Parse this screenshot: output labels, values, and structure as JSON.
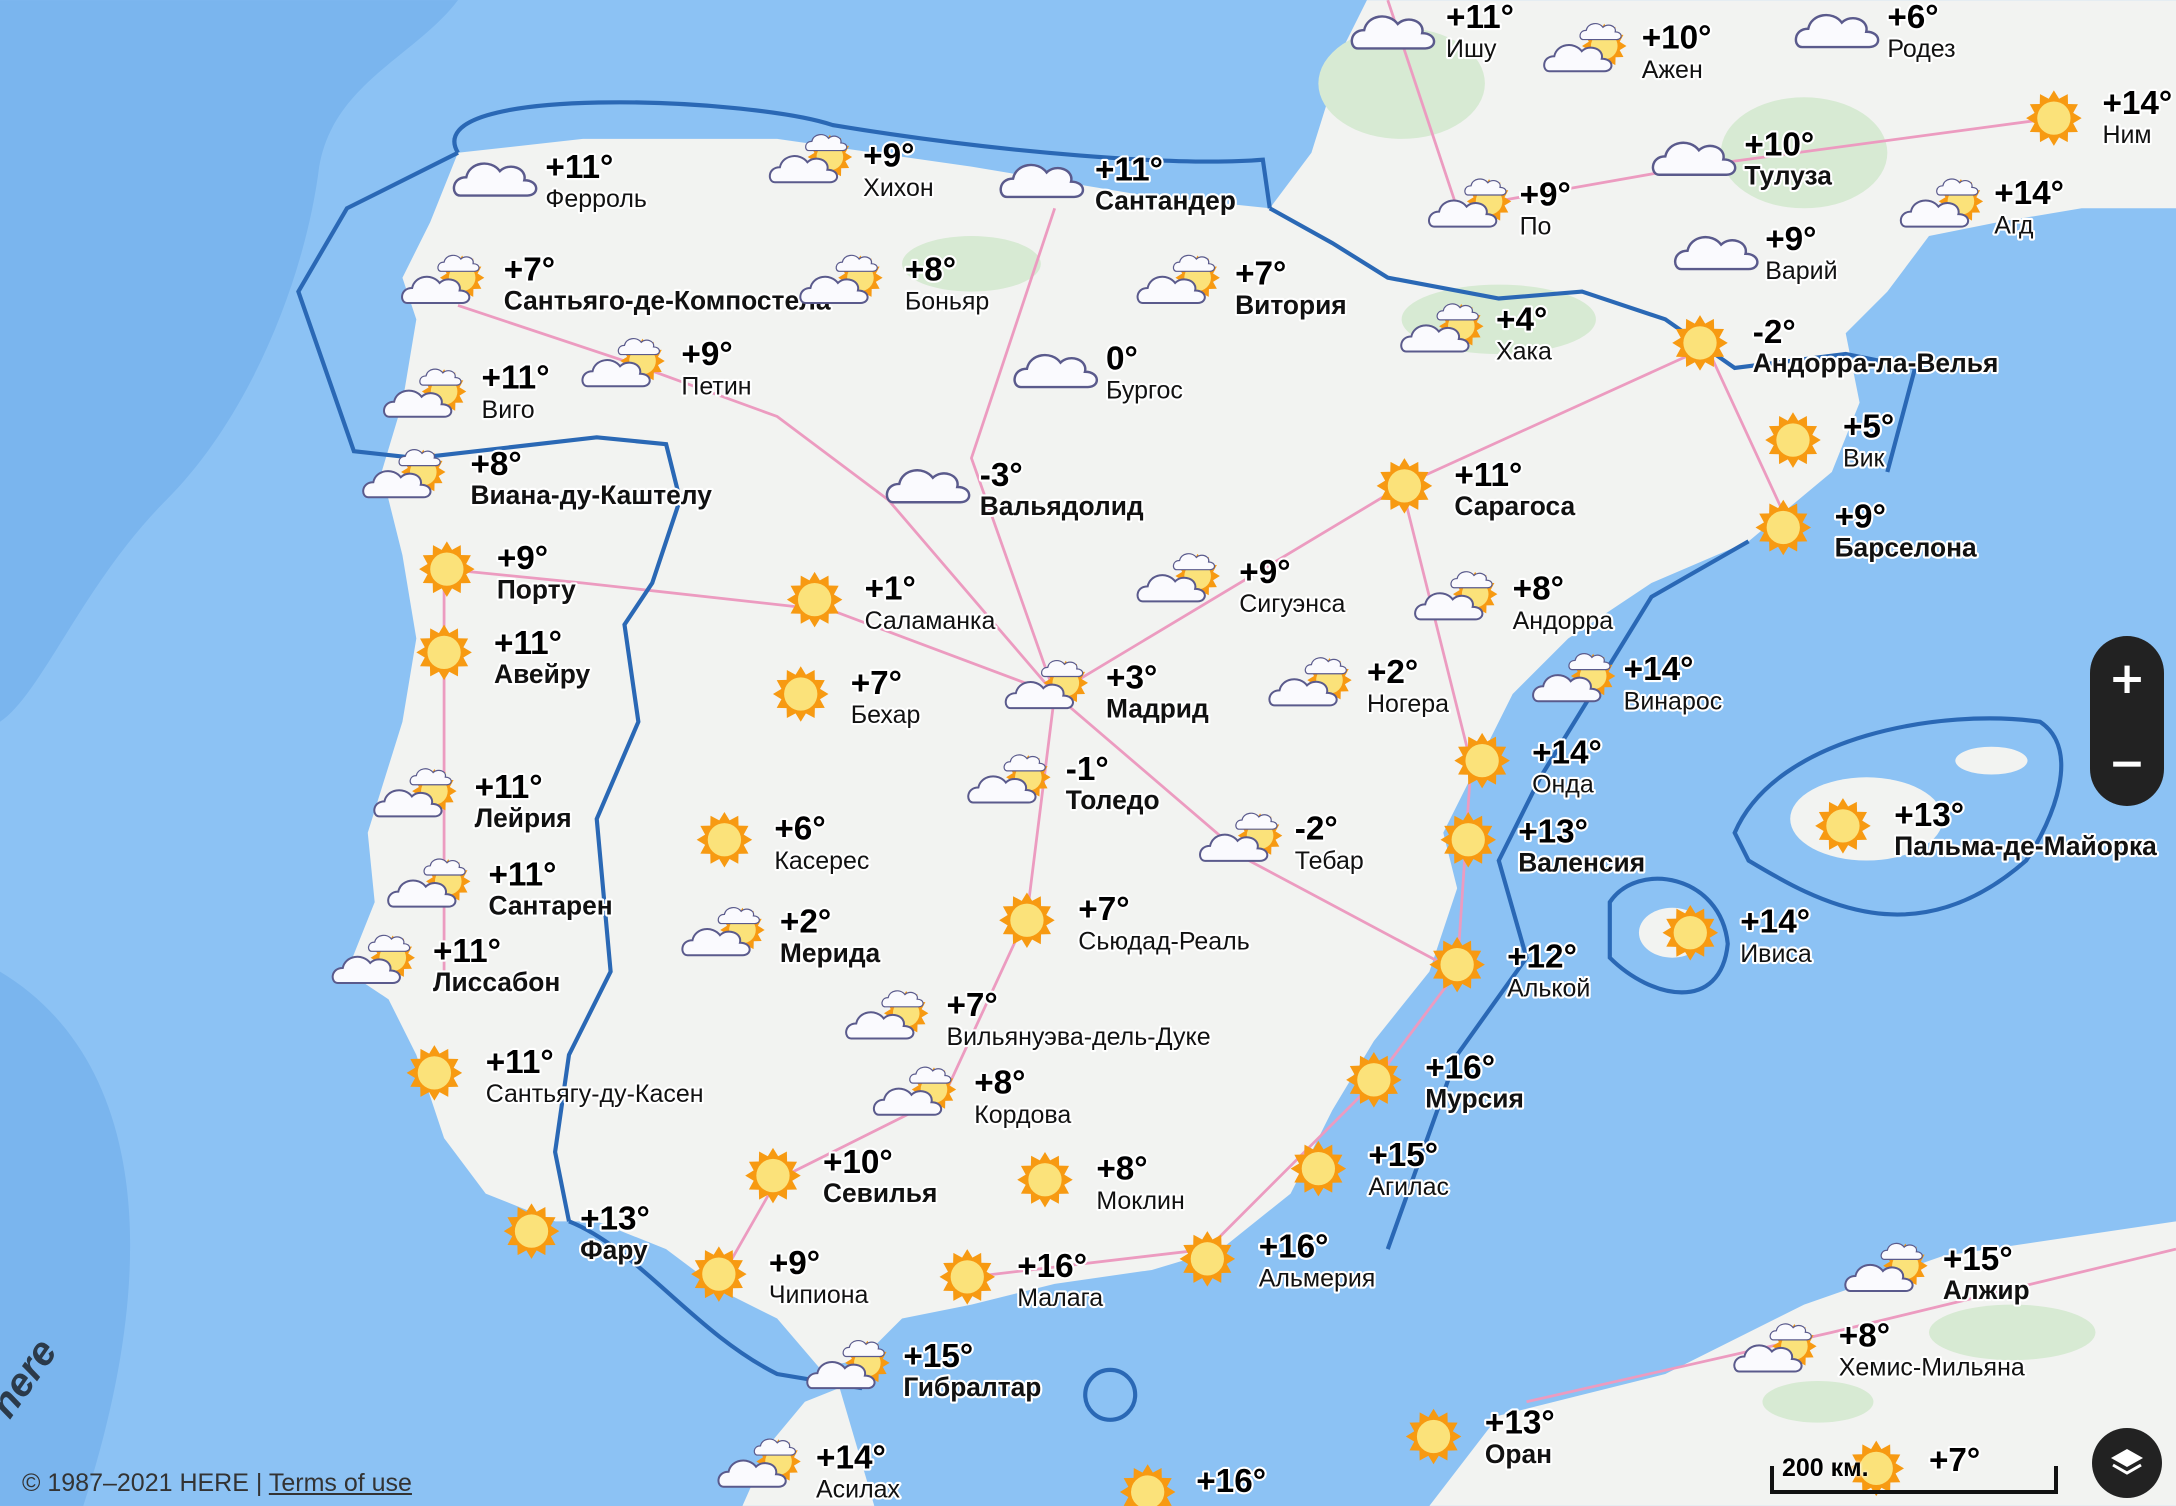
{
  "map": {
    "colors": {
      "sea": "#8cc2f4",
      "sea_deep": "#7ab5ee",
      "land": "#f2f3f1",
      "forest": "#d7ead3",
      "border": "#2a68b5",
      "road": "#ec9bc0"
    },
    "markers": [
      {
        "city": "Ферроль",
        "temp": "+11°",
        "icon": "cloud",
        "bold": false
      },
      {
        "city": "Хихон",
        "temp": "+9°",
        "icon": "sun-cloud",
        "bold": false
      },
      {
        "city": "Сантандер",
        "temp": "+11°",
        "icon": "cloud",
        "bold": true
      },
      {
        "city": "Ишу",
        "temp": "+11°",
        "icon": "cloud",
        "bold": false
      },
      {
        "city": "Ажен",
        "temp": "+10°",
        "icon": "sun-cloud",
        "bold": false
      },
      {
        "city": "Родез",
        "temp": "+6°",
        "icon": "cloud",
        "bold": false
      },
      {
        "city": "Ним",
        "temp": "+14°",
        "icon": "sun",
        "bold": false
      },
      {
        "city": "Тулуза",
        "temp": "+10°",
        "icon": "cloud",
        "bold": true
      },
      {
        "city": "Агд",
        "temp": "+14°",
        "icon": "sun-cloud",
        "bold": false
      },
      {
        "city": "По",
        "temp": "+9°",
        "icon": "sun-cloud",
        "bold": false
      },
      {
        "city": "Варий",
        "temp": "+9°",
        "icon": "cloud",
        "bold": false
      },
      {
        "city": "Сантьяго-де-Компостела",
        "temp": "+7°",
        "icon": "sun-cloud",
        "bold": true
      },
      {
        "city": "Боньяр",
        "temp": "+8°",
        "icon": "sun-cloud",
        "bold": false
      },
      {
        "city": "Витория",
        "temp": "+7°",
        "icon": "sun-cloud",
        "bold": true
      },
      {
        "city": "Хака",
        "temp": "+4°",
        "icon": "sun-cloud",
        "bold": false
      },
      {
        "city": "Андорра-ла-Велья",
        "temp": "-2°",
        "icon": "sun",
        "bold": true
      },
      {
        "city": "Петин",
        "temp": "+9°",
        "icon": "sun-cloud",
        "bold": false
      },
      {
        "city": "Виго",
        "temp": "+11°",
        "icon": "sun-cloud",
        "bold": false
      },
      {
        "city": "Бургос",
        "temp": "0°",
        "icon": "cloud",
        "bold": false
      },
      {
        "city": "Вик",
        "temp": "+5°",
        "icon": "sun",
        "bold": false
      },
      {
        "city": "Виана-ду-Каштелу",
        "temp": "+8°",
        "icon": "sun-cloud",
        "bold": true
      },
      {
        "city": "Вальядолид",
        "temp": "-3°",
        "icon": "cloud",
        "bold": true
      },
      {
        "city": "Сарагоса",
        "temp": "+11°",
        "icon": "sun",
        "bold": true
      },
      {
        "city": "Барселона",
        "temp": "+9°",
        "icon": "sun",
        "bold": true
      },
      {
        "city": "Порту",
        "temp": "+9°",
        "icon": "sun",
        "bold": true
      },
      {
        "city": "Саламанка",
        "temp": "+1°",
        "icon": "sun",
        "bold": false
      },
      {
        "city": "Сигуэнса",
        "temp": "+9°",
        "icon": "sun-cloud",
        "bold": false
      },
      {
        "city": "Андорра",
        "temp": "+8°",
        "icon": "sun-cloud",
        "bold": false
      },
      {
        "city": "Авейру",
        "temp": "+11°",
        "icon": "sun",
        "bold": true
      },
      {
        "city": "Бехар",
        "temp": "+7°",
        "icon": "sun",
        "bold": false
      },
      {
        "city": "Мадрид",
        "temp": "+3°",
        "icon": "sun-cloud",
        "bold": true
      },
      {
        "city": "Ногера",
        "temp": "+2°",
        "icon": "sun-cloud",
        "bold": false
      },
      {
        "city": "Винарос",
        "temp": "+14°",
        "icon": "sun-cloud",
        "bold": false
      },
      {
        "city": "Онда",
        "temp": "+14°",
        "icon": "sun",
        "bold": false
      },
      {
        "city": "Лейрия",
        "temp": "+11°",
        "icon": "sun-cloud",
        "bold": true
      },
      {
        "city": "Толедо",
        "temp": "-1°",
        "icon": "sun-cloud",
        "bold": true
      },
      {
        "city": "Касерес",
        "temp": "+6°",
        "icon": "sun",
        "bold": false
      },
      {
        "city": "Тебар",
        "temp": "-2°",
        "icon": "sun-cloud",
        "bold": false
      },
      {
        "city": "Валенсия",
        "temp": "+13°",
        "icon": "sun",
        "bold": true
      },
      {
        "city": "Пальма-де-Майорка",
        "temp": "+13°",
        "icon": "sun",
        "bold": true
      },
      {
        "city": "Сантарен",
        "temp": "+11°",
        "icon": "sun-cloud",
        "bold": true
      },
      {
        "city": "Мерида",
        "temp": "+2°",
        "icon": "sun-cloud",
        "bold": true
      },
      {
        "city": "Сьюдад-Реаль",
        "temp": "+7°",
        "icon": "sun",
        "bold": false
      },
      {
        "city": "Ивиса",
        "temp": "+14°",
        "icon": "sun",
        "bold": false
      },
      {
        "city": "Лиссабон",
        "temp": "+11°",
        "icon": "sun-cloud",
        "bold": true
      },
      {
        "city": "Алькой",
        "temp": "+12°",
        "icon": "sun",
        "bold": false
      },
      {
        "city": "Вильянуэва-дель-Дуке",
        "temp": "+7°",
        "icon": "sun-cloud",
        "bold": false
      },
      {
        "city": "Сантьягу-ду-Касен",
        "temp": "+11°",
        "icon": "sun",
        "bold": false
      },
      {
        "city": "Мурсия",
        "temp": "+16°",
        "icon": "sun",
        "bold": true
      },
      {
        "city": "Кордова",
        "temp": "+8°",
        "icon": "sun-cloud",
        "bold": false
      },
      {
        "city": "Севилья",
        "temp": "+10°",
        "icon": "sun",
        "bold": true
      },
      {
        "city": "Моклин",
        "temp": "+8°",
        "icon": "sun",
        "bold": false
      },
      {
        "city": "Агилас",
        "temp": "+15°",
        "icon": "sun",
        "bold": false
      },
      {
        "city": "Фару",
        "temp": "+13°",
        "icon": "sun",
        "bold": true
      },
      {
        "city": "Альмерия",
        "temp": "+16°",
        "icon": "sun",
        "bold": false
      },
      {
        "city": "Чипиона",
        "temp": "+9°",
        "icon": "sun",
        "bold": false
      },
      {
        "city": "Малага",
        "temp": "+16°",
        "icon": "sun",
        "bold": false
      },
      {
        "city": "Алжир",
        "temp": "+15°",
        "icon": "sun-cloud",
        "bold": true
      },
      {
        "city": "Хемис-Мильяна",
        "temp": "+8°",
        "icon": "sun-cloud",
        "bold": false
      },
      {
        "city": "Гибралтар",
        "temp": "+15°",
        "icon": "sun-cloud",
        "bold": true
      },
      {
        "city": "Оран",
        "temp": "+13°",
        "icon": "sun",
        "bold": true
      },
      {
        "city": "Асилах",
        "temp": "+14°",
        "icon": "sun-cloud",
        "bold": false
      },
      {
        "city": "",
        "temp": "+16°",
        "icon": "sun",
        "bold": false
      },
      {
        "city": "",
        "temp": "+7°",
        "icon": "sun",
        "bold": false
      }
    ]
  },
  "controls": {
    "zoom_in": "+",
    "zoom_out": "−",
    "layers_icon": "layers-icon"
  },
  "scale_bar": {
    "label": "200 км."
  },
  "attribution": {
    "logo": "here",
    "copyright": "© 1987–2021 HERE | ",
    "terms": "Terms of use"
  }
}
